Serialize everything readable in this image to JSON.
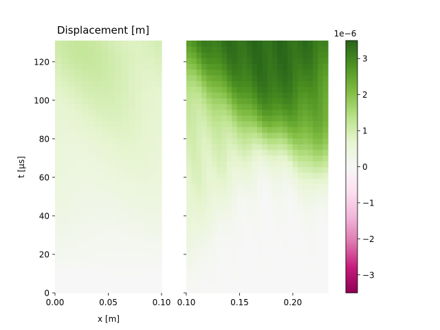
{
  "chart_data": {
    "type": "heatmap",
    "title": "Displacement [m]",
    "xlabel": "x [m]",
    "ylabel": "t [µs]",
    "ylim": [
      0,
      131
    ],
    "yticks": [
      0,
      20,
      40,
      60,
      80,
      100,
      120
    ],
    "panels": [
      {
        "xlim": [
          0.0,
          0.1
        ],
        "xticks": [
          0.0,
          0.05,
          0.1
        ],
        "xtick_labels": [
          "0.00",
          "0.05",
          "0.10"
        ],
        "max_displacement": 1.2e-06
      },
      {
        "xlim": [
          0.1,
          0.233
        ],
        "xticks": [
          0.1,
          0.15,
          0.2
        ],
        "xtick_labels": [
          "0.10",
          "0.15",
          "0.20"
        ],
        "max_displacement": 3.4e-06
      }
    ],
    "colorbar": {
      "colormap": "PiYG",
      "range": [
        -3.5e-06,
        3.5e-06
      ],
      "offset_label": "1e−6",
      "ticks": [
        -3,
        -2,
        -1,
        0,
        1,
        2,
        3
      ],
      "tick_labels": [
        "−3",
        "−2",
        "−1",
        "0",
        "1",
        "2",
        "3"
      ],
      "colors": [
        "#8e0152",
        "#c51b7d",
        "#de77ae",
        "#f1b6da",
        "#fde0ef",
        "#f7f7f7",
        "#e6f5d0",
        "#b8e186",
        "#7fbc41",
        "#4d9221",
        "#276419"
      ]
    }
  }
}
